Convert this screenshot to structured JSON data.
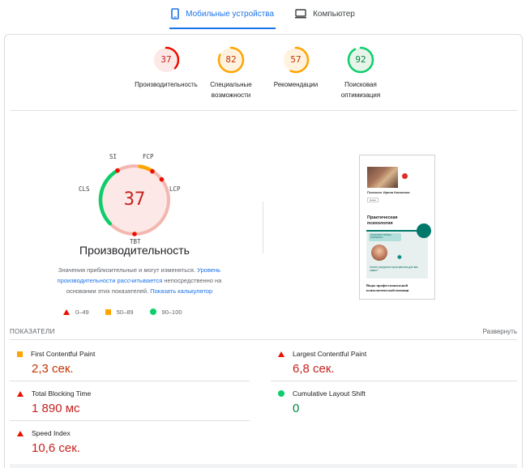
{
  "tabs": [
    {
      "label": "Мобильные устройства",
      "icon": "smartphone-icon",
      "active": true
    },
    {
      "label": "Компьютер",
      "icon": "monitor-icon",
      "active": false
    }
  ],
  "summary": [
    {
      "score": "37",
      "label": "Производительность",
      "status": "fail",
      "color": "#eb0f00",
      "fraction": 0.37
    },
    {
      "score": "82",
      "label": "Специальные возможности",
      "status": "average",
      "color": "#ffa400",
      "fraction": 0.82
    },
    {
      "score": "57",
      "label": "Рекомендации",
      "status": "average",
      "color": "#ffa400",
      "fraction": 0.57
    },
    {
      "score": "92",
      "label": "Поисковая оптимизация",
      "status": "pass",
      "color": "#0cce6b",
      "fraction": 0.92
    }
  ],
  "performance": {
    "score": "37",
    "title": "Производительность",
    "metric_tags": [
      "SI",
      "FCP",
      "LCP",
      "TBT",
      "CLS"
    ],
    "note_prefix": "Значения приблизительные и могут изменяться. ",
    "note_link1": "Уровень производительности рассчитывается",
    "note_middle": " непосредственно на основании этих показателей. ",
    "note_link2": "Показать калькулятор"
  },
  "legend": [
    {
      "range": "0–49",
      "shape": "triangle",
      "color": "#eb0f00"
    },
    {
      "range": "50–89",
      "shape": "square",
      "color": "#ffa400"
    },
    {
      "range": "90–100",
      "shape": "circle",
      "color": "#0cce6b"
    }
  ],
  "thumbnail": {
    "site_name": "Психолог Ирина Калинина",
    "button": "меню",
    "heading": "Практическая психология",
    "banner": "ПСИХОЛОГ ИРИНА КАЛИНИНА",
    "cta": "Хотите ресурсное пространство для вас самих?",
    "footer": "Виды профессиональной психологической помощи"
  },
  "metrics": {
    "title": "ПОКАЗАТЕЛИ",
    "toggle": "Развернуть",
    "items": [
      {
        "name": "First Contentful Paint",
        "value": "2,3 сек.",
        "status": "average"
      },
      {
        "name": "Largest Contentful Paint",
        "value": "6,8 сек.",
        "status": "fail"
      },
      {
        "name": "Total Blocking Time",
        "value": "1 890 мс",
        "status": "fail"
      },
      {
        "name": "Cumulative Layout Shift",
        "value": "0",
        "status": "pass"
      },
      {
        "name": "Speed Index",
        "value": "10,6 сек.",
        "status": "fail"
      }
    ]
  }
}
